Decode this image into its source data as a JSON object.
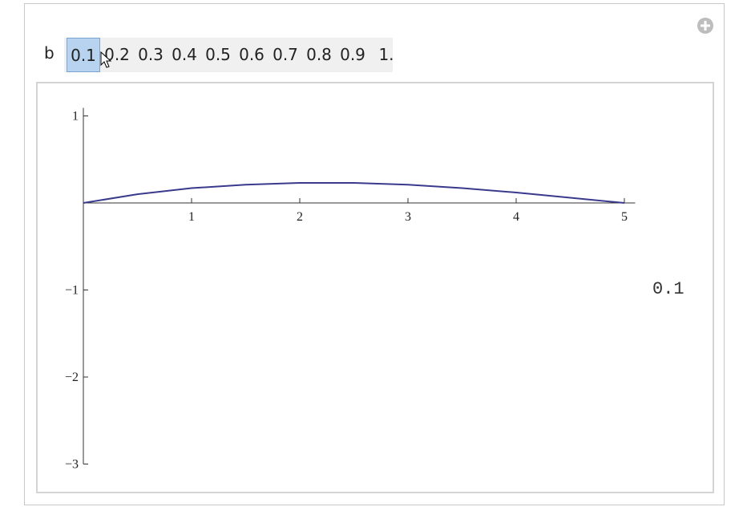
{
  "control": {
    "label": "b",
    "options": [
      "0.1",
      "0.2",
      "0.3",
      "0.4",
      "0.5",
      "0.6",
      "0.7",
      "0.8",
      "0.9",
      "1."
    ],
    "selected": 0
  },
  "output": "0.1",
  "chart_data": {
    "type": "line",
    "x": [
      0,
      0.5,
      1,
      1.5,
      2,
      2.5,
      3,
      3.5,
      4,
      4.5,
      5
    ],
    "series": [
      {
        "color": "#3a3a8c",
        "values": [
          0,
          0.1,
          0.17,
          0.21,
          0.23,
          0.23,
          0.21,
          0.17,
          0.12,
          0.06,
          0
        ]
      }
    ],
    "xlim": [
      0,
      5.1
    ],
    "ylim": [
      -3,
      1
    ],
    "xticks": [
      1,
      2,
      3,
      4,
      5
    ],
    "yticks": [
      {
        "value": -3,
        "label": "−3"
      },
      {
        "value": -2,
        "label": "−2"
      },
      {
        "value": -1,
        "label": "−1"
      },
      1
    ]
  }
}
